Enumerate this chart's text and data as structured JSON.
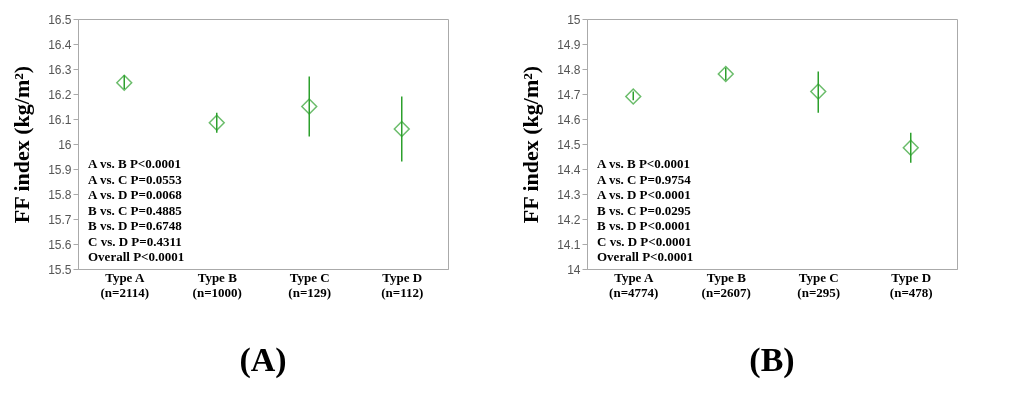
{
  "chart_data": [
    {
      "type": "scatter",
      "title": "(A)",
      "ylabel": "FF index (kg/m²)",
      "categories": [
        "Type A (n=2114)",
        "Type B (n=1000)",
        "Type C (n=129)",
        "Type D (n=112)"
      ],
      "values": [
        16.245,
        16.085,
        16.15,
        16.06
      ],
      "errors": [
        [
          16.22,
          16.275
        ],
        [
          16.045,
          16.125
        ],
        [
          16.03,
          16.27
        ],
        [
          15.93,
          16.19
        ]
      ],
      "color": "#2ca02c",
      "marker": "diamond",
      "grid": false,
      "ylim": [
        15.5,
        16.5
      ],
      "yticks": [
        15.5,
        15.6,
        15.7,
        15.8,
        15.9,
        {
          "value": 16,
          "label": "16"
        },
        16.1,
        16.2,
        16.3,
        16.4,
        16.5
      ],
      "annotations": [
        "A vs. B P<0.0001",
        "A vs. C P=0.0553",
        "A vs. D P=0.0068",
        "B vs. C P=0.4885",
        "B vs. D P=0.6748",
        "C vs. D P=0.4311",
        "Overall P<0.0001"
      ]
    },
    {
      "type": "scatter",
      "title": "(B)",
      "ylabel": "FF index (kg/m²)",
      "categories": [
        "Type A (n=4774)",
        "Type B (n=2607)",
        "Type C (n=295)",
        "Type D (n=478)"
      ],
      "values": [
        14.69,
        14.78,
        14.71,
        14.485
      ],
      "errors": [
        [
          14.675,
          14.71
        ],
        [
          14.755,
          14.805
        ],
        [
          14.625,
          14.79
        ],
        [
          14.425,
          14.545
        ]
      ],
      "color": "#2ca02c",
      "marker": "diamond",
      "grid": false,
      "ylim": [
        14,
        15
      ],
      "yticks": [
        {
          "value": 14,
          "label": "14"
        },
        14.1,
        14.2,
        14.3,
        14.4,
        14.5,
        14.6,
        14.7,
        14.8,
        14.9,
        {
          "value": 15,
          "label": "15"
        }
      ],
      "annotations": [
        "A vs. B P<0.0001",
        "A vs. C P=0.9754",
        "A vs. D P<0.0001",
        "B vs. C P=0.0295",
        "B vs. D P<0.0001",
        "C vs. D P<0.0001",
        "Overall P<0.0001"
      ]
    }
  ]
}
